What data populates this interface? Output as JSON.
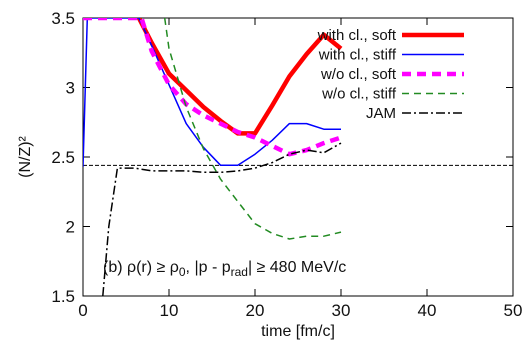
{
  "chart_data": {
    "type": "line",
    "xlabel": "time [fm/c]",
    "ylabel": "(N/Z)²",
    "xlim": [
      0,
      50
    ],
    "ylim": [
      1.5,
      3.5
    ],
    "x_ticks": [
      "0",
      "10",
      "20",
      "30",
      "40",
      "50"
    ],
    "y_ticks": [
      "1.5",
      "2",
      "2.5",
      "3",
      "3.5"
    ],
    "legend_position": "top-right",
    "annotation_parts": [
      "(b)  ρ(r) ≥ ρ",
      "0",
      ", |p - p",
      "rad",
      "| ≥ 480 MeV/c"
    ],
    "reference_line": {
      "y": 2.44,
      "style": "dashed",
      "color": "#000000"
    },
    "series": [
      {
        "name": "with cl., soft",
        "color": "#ff0000",
        "style": "solid-thick",
        "x": [
          6.5,
          8,
          10,
          12,
          14,
          16,
          18,
          20,
          22,
          24,
          26,
          28,
          30
        ],
        "y": [
          3.5,
          3.32,
          3.1,
          2.98,
          2.86,
          2.76,
          2.67,
          2.67,
          2.87,
          3.08,
          3.24,
          3.38,
          3.28
        ]
      },
      {
        "name": "with cl., stiff",
        "color": "#0000ff",
        "style": "solid",
        "x": [
          0,
          0.5,
          6.5,
          8,
          10,
          12,
          14,
          16,
          18,
          20,
          22,
          24,
          26,
          28,
          30
        ],
        "y": [
          2.43,
          3.5,
          3.5,
          3.3,
          3.02,
          2.74,
          2.57,
          2.44,
          2.44,
          2.52,
          2.62,
          2.74,
          2.74,
          2.7,
          2.7
        ]
      },
      {
        "name": "w/o cl., soft",
        "color": "#ff00ff",
        "style": "dashed-thick",
        "x": [
          0,
          6.8,
          8,
          10,
          12,
          14,
          16,
          18,
          20,
          22,
          24,
          26,
          28,
          30
        ],
        "y": [
          3.5,
          3.5,
          3.26,
          3.02,
          2.88,
          2.8,
          2.74,
          2.68,
          2.64,
          2.58,
          2.52,
          2.55,
          2.6,
          2.64
        ]
      },
      {
        "name": "w/o cl., stiff",
        "color": "#228b22",
        "style": "dashed",
        "x": [
          9.5,
          10,
          12,
          14,
          16,
          18,
          20,
          22,
          24,
          26,
          28,
          30
        ],
        "y": [
          3.5,
          3.28,
          2.86,
          2.56,
          2.34,
          2.18,
          2.02,
          1.95,
          1.91,
          1.93,
          1.93,
          1.96
        ]
      },
      {
        "name": "JAM",
        "color": "#000000",
        "style": "dash-dot",
        "x": [
          2.3,
          3,
          4,
          6,
          8,
          10,
          12,
          14,
          16,
          18,
          20,
          22,
          24,
          26,
          28,
          30
        ],
        "y": [
          1.5,
          2.0,
          2.42,
          2.42,
          2.4,
          2.4,
          2.4,
          2.39,
          2.39,
          2.4,
          2.42,
          2.46,
          2.52,
          2.55,
          2.53,
          2.6
        ]
      }
    ]
  }
}
